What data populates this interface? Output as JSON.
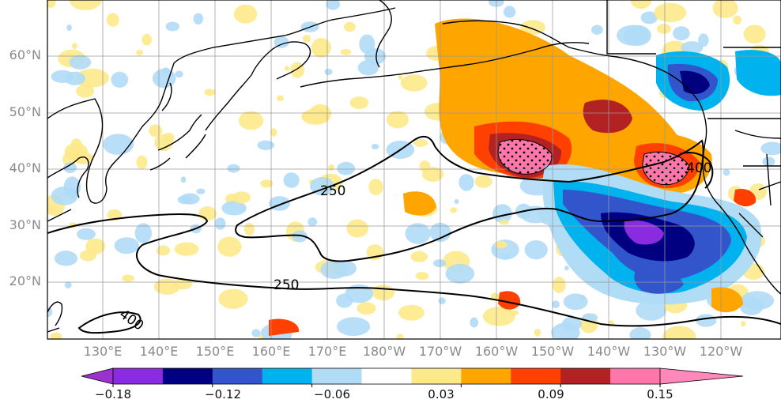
{
  "map": {
    "lat_labels": [
      "60°N",
      "50°N",
      "40°N",
      "30°N",
      "20°N"
    ],
    "lon_labels": [
      "130°E",
      "140°E",
      "150°E",
      "160°E",
      "170°E",
      "180°W",
      "170°W",
      "160°W",
      "150°W",
      "140°W",
      "130°W",
      "120°W"
    ],
    "contour_labels": [
      "250",
      "250",
      "400",
      "400"
    ],
    "extent": {
      "lon_min": 122,
      "lon_max": 249,
      "lat_min": 10,
      "lat_max": 70
    }
  },
  "colorbar": {
    "tick_labels": [
      "−0.18",
      "−0.12",
      "−0.06",
      "0.03",
      "0.09",
      "0.15"
    ],
    "tick_values": [
      -0.18,
      -0.12,
      -0.06,
      0.03,
      0.09,
      0.15
    ],
    "bounds": [
      -0.18,
      -0.15,
      -0.12,
      -0.09,
      -0.06,
      -0.03,
      0.0,
      0.03,
      0.06,
      0.09,
      0.12,
      0.15
    ],
    "colors": [
      "#8a2be2",
      "#000080",
      "#3355cc",
      "#00b2ee",
      "#b0dcf6",
      "#ffffff",
      "#fde98a",
      "#ffa500",
      "#ff4000",
      "#b22222",
      "#ff77aa"
    ],
    "under_color": "#9a32cd",
    "over_color": "#ff88bb"
  }
}
